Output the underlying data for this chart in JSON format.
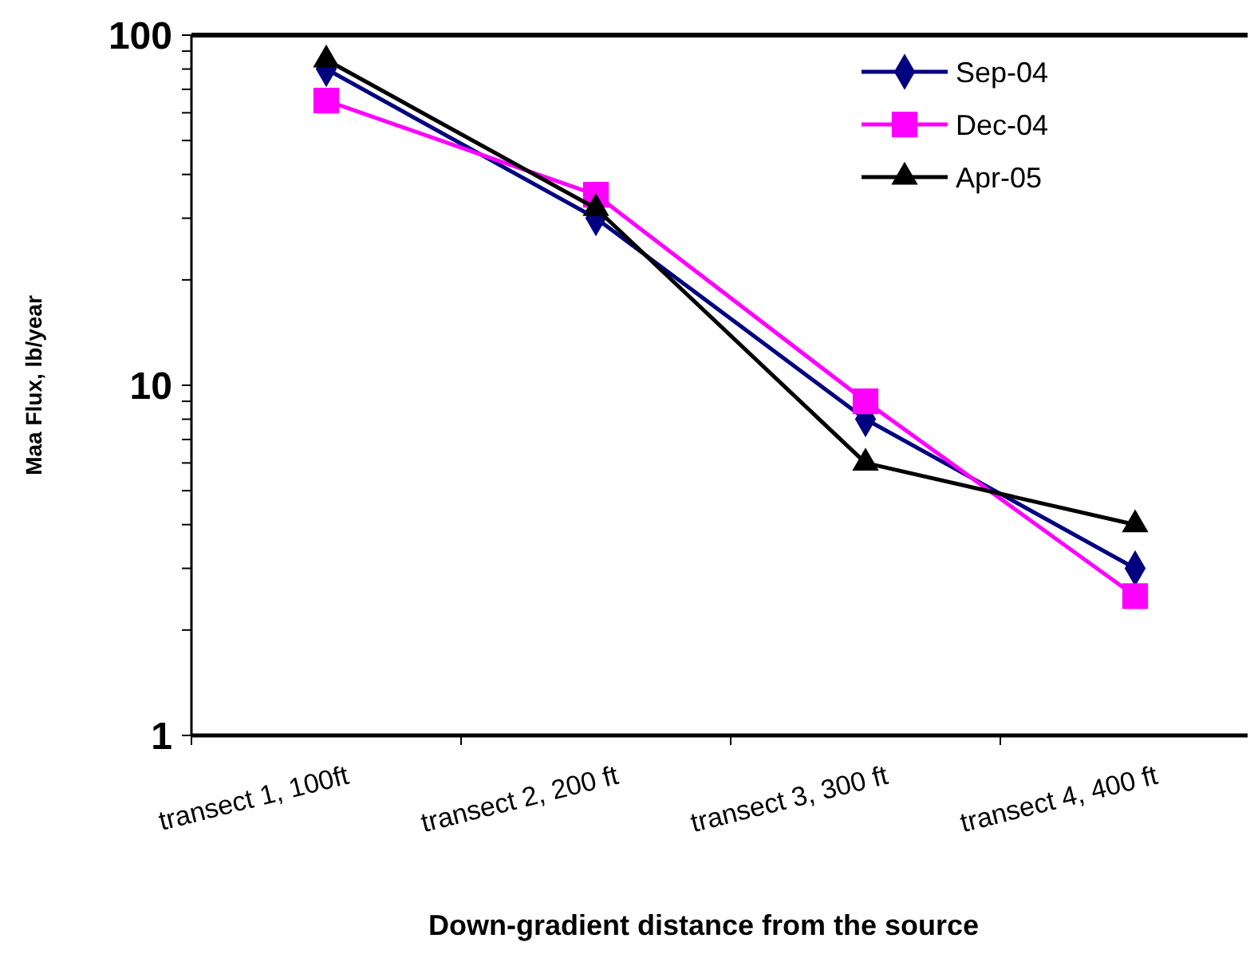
{
  "chart_data": {
    "type": "line",
    "xlabel": "Down-gradient distance from the source",
    "ylabel": "Maa Flux, lb/year",
    "categories": [
      "transect 1, 100ft",
      "transect 2, 200 ft",
      "transect 3, 300 ft",
      "transect 4, 400 ft"
    ],
    "series": [
      {
        "name": "Sep-04",
        "color": "#000080",
        "marker": "diamond",
        "values": [
          80,
          30,
          8,
          3
        ]
      },
      {
        "name": "Dec-04",
        "color": "#ff00ff",
        "marker": "square",
        "values": [
          65,
          35,
          9,
          2.5
        ]
      },
      {
        "name": "Apr-05",
        "color": "#000000",
        "marker": "triangle",
        "values": [
          85,
          32,
          6,
          4
        ]
      }
    ],
    "log": true,
    "ylim": [
      1,
      100
    ],
    "yticks": [
      1,
      {
        "value": 2,
        "label": null
      },
      {
        "value": 3,
        "label": null
      },
      {
        "value": 4,
        "label": null
      },
      {
        "value": 5,
        "label": null
      },
      {
        "value": 6,
        "label": null
      },
      {
        "value": 7,
        "label": null
      },
      {
        "value": 8,
        "label": null
      },
      {
        "value": 9,
        "label": null
      },
      10,
      {
        "value": 20,
        "label": null
      },
      {
        "value": 30,
        "label": null
      },
      {
        "value": 40,
        "label": null
      },
      {
        "value": 50,
        "label": null
      },
      {
        "value": 60,
        "label": null
      },
      {
        "value": 70,
        "label": null
      },
      {
        "value": 80,
        "label": null
      },
      {
        "value": 90,
        "label": null
      },
      100
    ],
    "grid": false,
    "legend": "top right"
  }
}
